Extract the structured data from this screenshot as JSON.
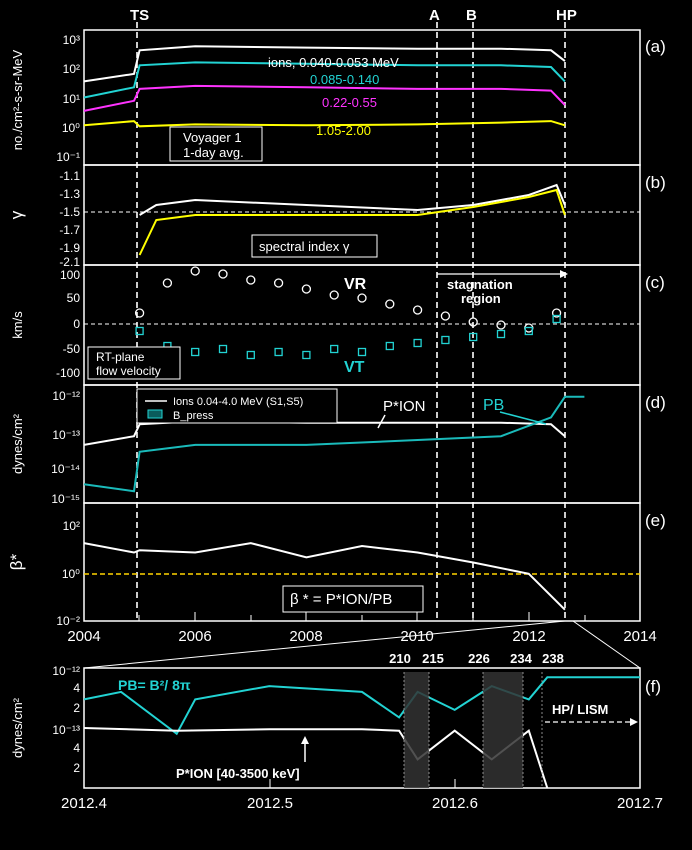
{
  "figure": {
    "event_labels": [
      "TS",
      "A",
      "B",
      "HP"
    ],
    "panel_letters": [
      "(a)",
      "(b)",
      "(c)",
      "(d)",
      "(e)",
      "(f)"
    ],
    "x_ticks": [
      "2004",
      "2006",
      "2008",
      "2010",
      "2012",
      "2014"
    ],
    "zoom_x_ticks": [
      "2012.4",
      "2012.5",
      "2012.6",
      "2012.7"
    ]
  },
  "panels": {
    "a": {
      "ylabel": "no./cm²-s-sr-MeV",
      "yticks": [
        "10³",
        "10²",
        "10¹",
        "10⁰",
        "10⁻¹"
      ],
      "series_labels": [
        "ions, 0.040-0.053 MeV",
        "0.085-0.140",
        "0.22-0.55",
        "1.05-2.00"
      ],
      "note_line1": "Voyager 1",
      "note_line2": "1-day avg."
    },
    "b": {
      "ylabel": "γ",
      "yticks": [
        "-1.1",
        "-1.3",
        "-1.5",
        "-1.7",
        "-1.9",
        "-2.1"
      ],
      "note": "spectral index γ"
    },
    "c": {
      "ylabel": "km/s",
      "yticks": [
        "100",
        "50",
        "0",
        "-50",
        "-100"
      ],
      "vr_label": "VR",
      "vt_label": "VT",
      "stagnation_line1": "stagnation",
      "stagnation_line2": "region",
      "note_line1": "RT-plane",
      "note_line2": "flow velocity"
    },
    "d": {
      "ylabel": "dynes/cm²",
      "yticks": [
        "10⁻¹²",
        "10⁻¹³",
        "10⁻¹⁴",
        "10⁻¹⁵"
      ],
      "legend_ions": "Ions 0.04-4.0 MeV (S1,S5)",
      "legend_bpress": "B_press",
      "pion_label": "P*ION",
      "pb_label": "PB"
    },
    "e": {
      "ylabel": "β*",
      "yticks": [
        "10²",
        "10⁰",
        "10⁻²"
      ],
      "note": "β * = P*ION/PB"
    },
    "f": {
      "ylabel": "dynes/cm²",
      "yticks": [
        "10⁻¹²",
        "4",
        "2",
        "10⁻¹³",
        "4",
        "2"
      ],
      "pb_formula": "PB= B²/ 8π",
      "pion_label": "P*ION [40-3500 keV]",
      "hp_lism": "HP/ LISM",
      "day_labels": [
        "210",
        "215",
        "226",
        "234",
        "238"
      ]
    }
  },
  "chart_data": [
    {
      "type": "line",
      "panel": "a",
      "ylabel": "no./cm²-s-sr-MeV",
      "yscale": "log",
      "ylim": [
        0.1,
        1000
      ],
      "xlim": [
        2004,
        2014
      ],
      "series": [
        {
          "name": "ions, 0.040-0.053 MeV",
          "color": "#ffffff",
          "x": [
            2004.0,
            2004.9,
            2005.0,
            2006.0,
            2008.0,
            2010.0,
            2011.5,
            2012.4,
            2012.65
          ],
          "y": [
            30,
            50,
            250,
            330,
            300,
            280,
            280,
            250,
            120
          ]
        },
        {
          "name": "0.085-0.140",
          "color": "#22d3d3",
          "x": [
            2004.0,
            2004.9,
            2005.0,
            2006.0,
            2008.0,
            2010.0,
            2011.5,
            2012.4,
            2012.65
          ],
          "y": [
            10,
            20,
            90,
            110,
            100,
            90,
            90,
            80,
            30
          ]
        },
        {
          "name": "0.22-0.55",
          "color": "#ff33ff",
          "x": [
            2004.0,
            2004.9,
            2005.0,
            2006.0,
            2008.0,
            2010.0,
            2011.5,
            2012.4,
            2012.65
          ],
          "y": [
            4,
            8,
            18,
            22,
            20,
            18,
            18,
            16,
            6
          ]
        },
        {
          "name": "1.05-2.00",
          "color": "#ffff00",
          "x": [
            2004.0,
            2004.9,
            2005.0,
            2006.0,
            2008.0,
            2010.0,
            2011.5,
            2012.4,
            2012.65
          ],
          "y": [
            1.5,
            2,
            1.4,
            1.6,
            1.5,
            1.6,
            1.8,
            2.0,
            1.5
          ]
        }
      ]
    },
    {
      "type": "line",
      "panel": "b",
      "ylabel": "γ",
      "ylim": [
        -2.1,
        -1.1
      ],
      "xlim": [
        2004,
        2014
      ],
      "series": [
        {
          "color": "#ffffff",
          "x": [
            2005.0,
            2005.3,
            2006.0,
            2008.0,
            2010.0,
            2011.0,
            2012.0,
            2012.5,
            2012.65
          ],
          "y": [
            -1.6,
            -1.5,
            -1.45,
            -1.5,
            -1.55,
            -1.5,
            -1.4,
            -1.3,
            -1.5
          ]
        },
        {
          "color": "#ffff00",
          "x": [
            2005.0,
            2005.3,
            2006.0,
            2008.0,
            2010.0,
            2011.0,
            2012.0,
            2012.5,
            2012.65
          ],
          "y": [
            -2.0,
            -1.65,
            -1.6,
            -1.6,
            -1.6,
            -1.52,
            -1.42,
            -1.35,
            -1.6
          ]
        }
      ]
    },
    {
      "type": "scatter",
      "panel": "c",
      "ylabel": "km/s",
      "ylim": [
        -100,
        100
      ],
      "xlim": [
        2004,
        2014
      ],
      "series": [
        {
          "name": "VR",
          "color": "#ffffff",
          "x": [
            2005.0,
            2005.5,
            2006.0,
            2006.5,
            2007.0,
            2007.5,
            2008.0,
            2008.5,
            2009.0,
            2009.5,
            2010.0,
            2010.5,
            2011.0,
            2011.5,
            2012.0,
            2012.5
          ],
          "y": [
            20,
            70,
            90,
            85,
            75,
            70,
            60,
            50,
            45,
            35,
            25,
            15,
            5,
            0,
            -5,
            20
          ]
        },
        {
          "name": "VT",
          "color": "#22d3d3",
          "x": [
            2005.0,
            2005.5,
            2006.0,
            2006.5,
            2007.0,
            2007.5,
            2008.0,
            2008.5,
            2009.0,
            2009.5,
            2010.0,
            2010.5,
            2011.0,
            2011.5,
            2012.0,
            2012.5
          ],
          "y": [
            -10,
            -35,
            -45,
            -40,
            -50,
            -45,
            -50,
            -40,
            -45,
            -35,
            -30,
            -25,
            -20,
            -15,
            -10,
            10
          ]
        }
      ]
    },
    {
      "type": "line",
      "panel": "d",
      "ylabel": "dynes/cm²",
      "yscale": "log",
      "ylim": [
        1e-15,
        1e-12
      ],
      "xlim": [
        2004,
        2014
      ],
      "series": [
        {
          "name": "Ions 0.04-4.0 MeV (S1,S5)",
          "color": "#ffffff",
          "x": [
            2004.0,
            2004.9,
            2005.0,
            2006.0,
            2008.0,
            2010.0,
            2011.5,
            2012.4,
            2012.65
          ],
          "y": [
            3e-14,
            5e-14,
            1e-13,
            1.2e-13,
            1.1e-13,
            1.1e-13,
            1.1e-13,
            1e-13,
            5e-14
          ]
        },
        {
          "name": "B_press",
          "color": "#1ababa",
          "x": [
            2004.0,
            2004.9,
            2005.0,
            2006.0,
            2008.0,
            2010.0,
            2011.5,
            2012.4,
            2012.65,
            2013.0
          ],
          "y": [
            3e-15,
            2e-15,
            2e-14,
            3e-14,
            3e-14,
            4e-14,
            5e-14,
            1.5e-13,
            5e-13,
            5e-13
          ]
        }
      ]
    },
    {
      "type": "line",
      "panel": "e",
      "ylabel": "β*",
      "yscale": "log",
      "ylim": [
        0.01,
        1000
      ],
      "xlim": [
        2004,
        2014
      ],
      "series": [
        {
          "color": "#ffffff",
          "x": [
            2004.0,
            2004.9,
            2005.0,
            2006.0,
            2007.0,
            2008.0,
            2009.0,
            2010.0,
            2011.0,
            2012.0,
            2012.65
          ],
          "y": [
            20,
            8,
            10,
            8,
            20,
            5,
            15,
            8,
            3,
            1,
            0.03
          ]
        }
      ]
    },
    {
      "type": "line",
      "panel": "f",
      "ylabel": "dynes/cm²",
      "yscale": "log",
      "ylim": [
        1e-14,
        1e-12
      ],
      "xlim": [
        2012.4,
        2012.7
      ],
      "series": [
        {
          "name": "PB= B²/ 8π",
          "color": "#22d3d3",
          "x": [
            2012.4,
            2012.42,
            2012.45,
            2012.46,
            2012.5,
            2012.55,
            2012.57,
            2012.58,
            2012.6,
            2012.62,
            2012.64,
            2012.65,
            2012.7
          ],
          "y": [
            3e-13,
            4e-13,
            8e-14,
            3e-13,
            5e-13,
            4e-13,
            1.5e-13,
            4e-13,
            2e-13,
            5e-13,
            3e-13,
            7e-13,
            7e-13
          ]
        },
        {
          "name": "P*ION [40-3500 keV]",
          "color": "#ffffff",
          "x": [
            2012.4,
            2012.45,
            2012.5,
            2012.55,
            2012.57,
            2012.58,
            2012.6,
            2012.62,
            2012.64,
            2012.65
          ],
          "y": [
            1e-13,
            9e-14,
            9.5e-14,
            9.5e-14,
            9e-14,
            3e-14,
            9e-14,
            3e-14,
            9e-14,
            1e-14
          ]
        }
      ]
    }
  ]
}
